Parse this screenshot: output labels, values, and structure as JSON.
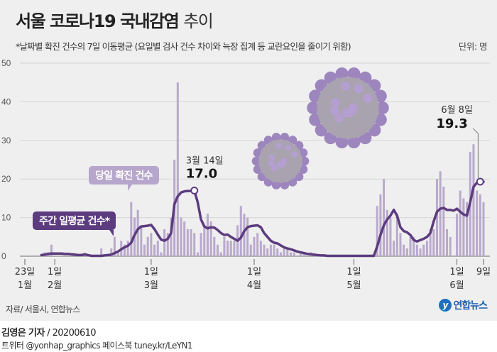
{
  "header": {
    "title_bold": "서울 코로나19 국내감염",
    "title_light": "추이",
    "subtitle": "*날짜별 확진 건수의 7일 이동평균 (요일별 검사 건수 차이와 늑장 집계 등 교란요인을 줄이기 위함)",
    "unit": "단위: 명"
  },
  "chart_data": {
    "type": "bar+line",
    "x_range": [
      "01-23",
      "06-09"
    ],
    "ylim": [
      0,
      50
    ],
    "y_ticks": [
      "0",
      "10",
      "20",
      "30",
      "40",
      "50"
    ],
    "grid": true,
    "x_ticks": [
      {
        "date": "01-23",
        "day": "23일",
        "month": "1월"
      },
      {
        "date": "02-01",
        "day": "1일",
        "month": "2월"
      },
      {
        "date": "03-01",
        "day": "1일",
        "month": "3월"
      },
      {
        "date": "04-01",
        "day": "1일",
        "month": "4월"
      },
      {
        "date": "05-01",
        "day": "1일",
        "month": "5월"
      },
      {
        "date": "06-01",
        "day": "1일",
        "month": "6월"
      },
      {
        "date": "06-09",
        "day": "9일",
        "month": ""
      }
    ],
    "series": [
      {
        "name": "당일 확진 건수",
        "kind": "bar",
        "color": "#b9a9cc",
        "values": [
          0,
          0,
          0,
          0,
          0,
          0,
          1,
          1,
          3,
          0,
          0,
          0,
          0,
          0,
          0,
          0,
          0,
          0,
          0,
          0,
          0,
          0,
          0,
          2,
          0,
          0,
          2,
          5,
          1,
          4,
          3,
          4,
          14,
          10,
          12,
          8,
          3,
          5,
          6,
          3,
          4,
          1,
          7,
          6,
          10,
          25,
          45,
          10,
          9,
          7,
          7,
          6,
          1,
          6,
          8,
          11,
          9,
          5,
          3,
          1,
          5,
          4,
          4,
          4,
          8,
          13,
          11,
          10,
          3,
          5,
          6,
          4,
          3,
          2,
          3,
          3,
          2,
          1,
          2,
          2,
          1,
          1,
          0,
          1,
          1,
          0,
          1,
          0,
          0,
          0,
          0,
          0,
          0,
          0,
          0,
          0,
          0,
          0,
          0,
          0,
          0,
          0,
          0,
          0,
          0,
          0,
          13,
          16,
          20,
          12,
          10,
          4,
          11,
          6,
          3,
          2,
          5,
          5,
          3,
          2,
          3,
          4,
          7,
          7,
          20,
          22,
          18,
          7,
          5,
          0,
          11,
          17,
          15,
          14,
          27,
          29,
          17,
          16,
          14
        ]
      },
      {
        "name": "주간 일평균 건수*",
        "kind": "line",
        "color": "#5c3b7e",
        "values": [
          null,
          null,
          null,
          null,
          null,
          0.3,
          0.4,
          0.6,
          0.7,
          0.7,
          0.7,
          0.7,
          0.6,
          0.6,
          0.5,
          0.4,
          0.3,
          0.3,
          0.5,
          0.3,
          0.1,
          0.1,
          0.1,
          0.1,
          0.2,
          0.3,
          0.4,
          0.8,
          1.2,
          1.8,
          2.3,
          2.7,
          3.5,
          5.5,
          7.0,
          7.7,
          7.8,
          7.9,
          8.1,
          7.0,
          5.6,
          4.3,
          4.0,
          4.5,
          6.0,
          13.5,
          15.5,
          16.5,
          16.8,
          16.9,
          16.9,
          17.0,
          14.0,
          9.5,
          7.7,
          7.2,
          7.5,
          7.4,
          6.8,
          6.0,
          5.5,
          5.6,
          5.0,
          4.5,
          4.0,
          4.8,
          6.5,
          7.5,
          7.8,
          7.9,
          8.0,
          7.5,
          6.0,
          5.0,
          4.0,
          3.5,
          3.3,
          2.8,
          2.3,
          2.0,
          1.8,
          1.5,
          1.2,
          1.0,
          0.8,
          0.6,
          0.5,
          0.4,
          0.3,
          0.2,
          0.2,
          0.1,
          0.1,
          0.1,
          0.1,
          0.1,
          0.1,
          0.1,
          0.1,
          0.1,
          0.1,
          0.1,
          0.1,
          0.1,
          0.1,
          0.1,
          2.5,
          5.5,
          8.0,
          9.5,
          10.5,
          12.0,
          10.5,
          7.5,
          6.5,
          6.2,
          5.5,
          4.2,
          3.8,
          4.2,
          4.5,
          5.0,
          6.0,
          9.0,
          11.5,
          12.3,
          12.5,
          12.0,
          12.0,
          11.8,
          12.3,
          11.5,
          10.8,
          10.5,
          14.0,
          18.0,
          19.0,
          19.3,
          19.3
        ]
      }
    ],
    "annotations": [
      {
        "date": "03-14",
        "label": "3월 14일",
        "value": "17.0"
      },
      {
        "date": "06-08",
        "label": "6월 8일",
        "value": "19.3"
      }
    ],
    "callouts": {
      "daily": "당일 확진 건수",
      "average": "주간 일평균 건수*"
    },
    "colors": {
      "background": "#efefef",
      "grid": "#d6d6d6",
      "virus": "#9d86bd"
    }
  },
  "footer": {
    "source": "자료/ 서울시, 연합뉴스",
    "logo_mark": "y",
    "logo_text": "연합뉴스",
    "reporter": "김영은 기자",
    "date": "/ 20200610",
    "social": "트위터 @yonhap_graphics  페이스북 tuney.kr/LeYN1"
  }
}
